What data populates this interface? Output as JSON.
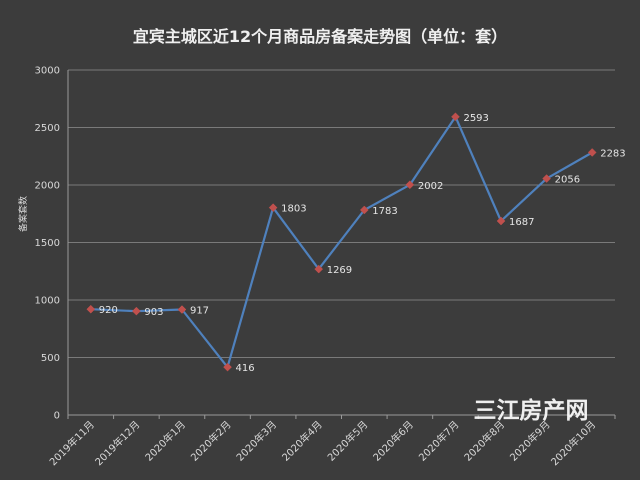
{
  "chart_data": {
    "type": "line",
    "title": "宜宾主城区近12个月商品房备案走势图（单位：套）",
    "ylabel": "备案套数",
    "xlabel": "",
    "categories": [
      "2019年11月",
      "2019年12月",
      "2020年1月",
      "2020年2月",
      "2020年3月",
      "2020年4月",
      "2020年5月",
      "2020年6月",
      "2020年7月",
      "2020年8月",
      "2020年9月",
      "2020年10月"
    ],
    "series": [
      {
        "values": [
          920,
          903,
          917,
          416,
          1803,
          1269,
          1783,
          2002,
          2593,
          1687,
          2056,
          2283
        ],
        "color": "#4f81bd",
        "marker_color": "#c0504d"
      }
    ],
    "ylim": [
      0,
      3000
    ],
    "yticks": [
      "0",
      "500",
      "1000",
      "1500",
      "2000",
      "2500",
      "3000"
    ],
    "data_labels": [
      "920",
      "903",
      "917",
      "416",
      "1803",
      "1269",
      "1783",
      "2002",
      "2593",
      "1687",
      "2056",
      "2283"
    ],
    "grid": true,
    "legend": "none"
  },
  "watermark": {
    "text": "三江房产网"
  },
  "colors": {
    "background": "#3c3c3c",
    "gridline": "#7a7a7a",
    "axis": "#9a9a9a"
  }
}
